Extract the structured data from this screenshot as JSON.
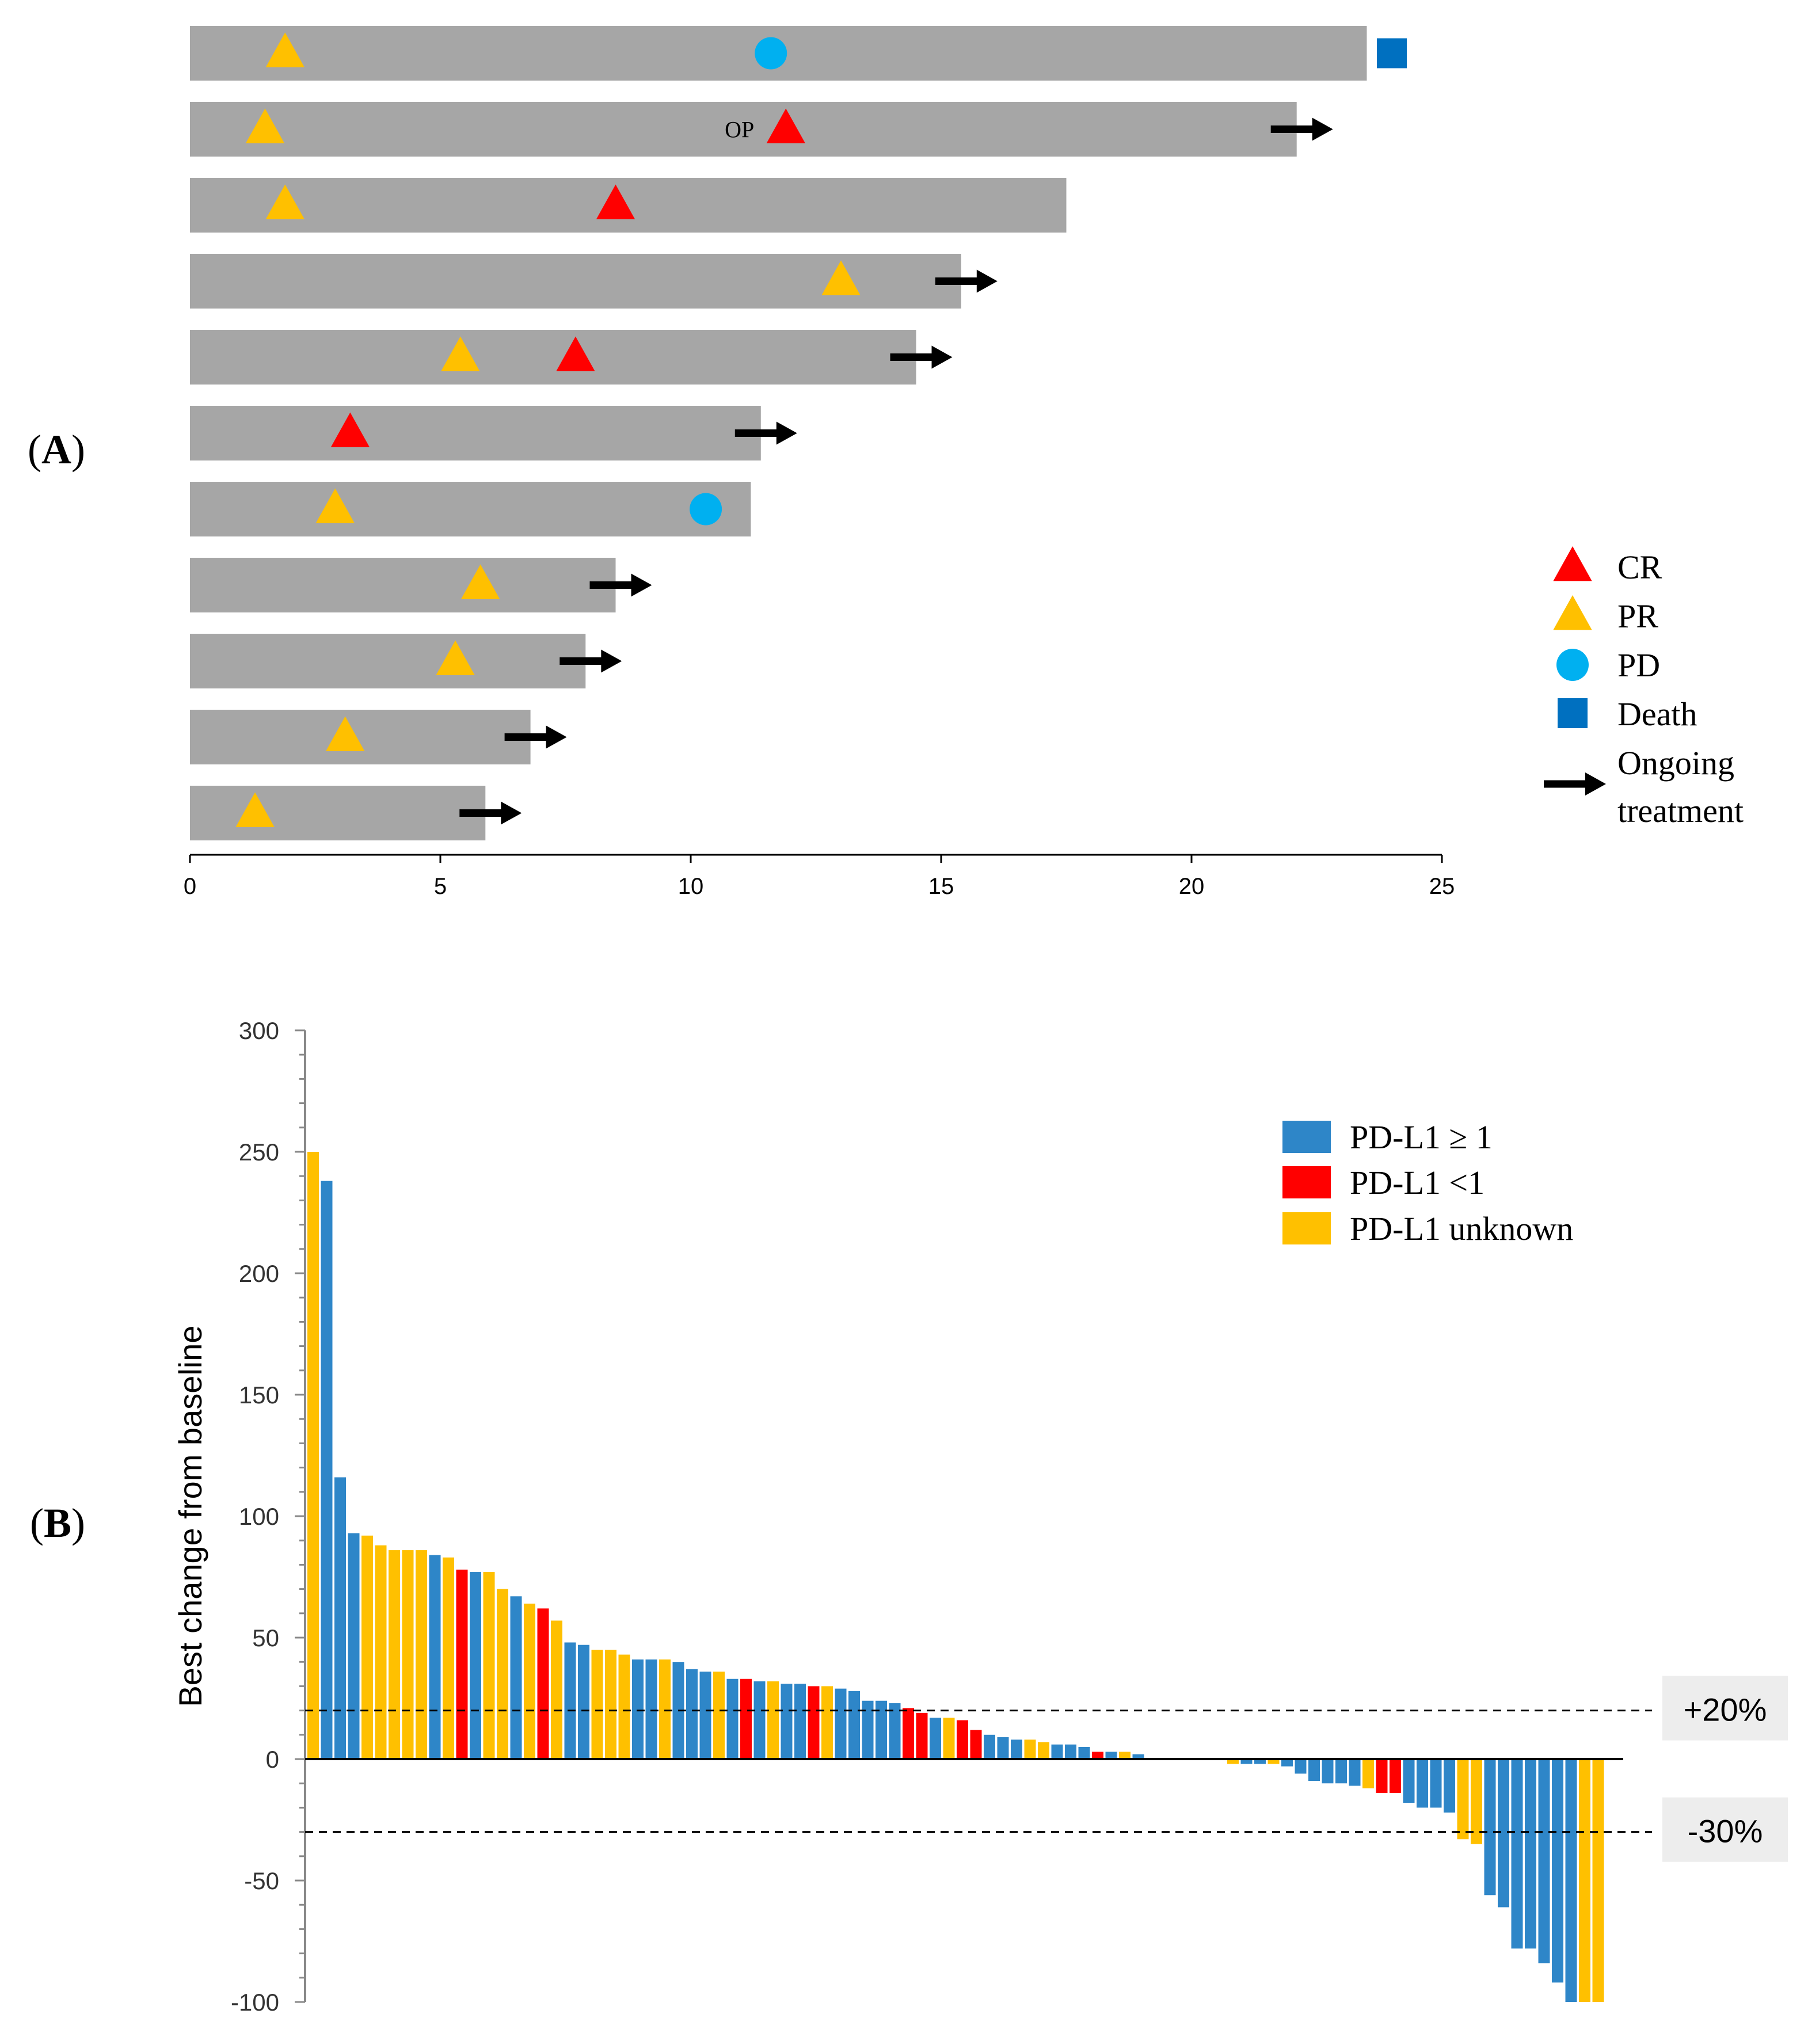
{
  "panel_a_label": "A",
  "panel_b_label": "B",
  "chart_data": [
    {
      "type": "swimmer",
      "panel": "A",
      "xlim": [
        0,
        25
      ],
      "xticks": [
        "0",
        "5",
        "10",
        "15",
        "20",
        "25"
      ],
      "tick_values": [
        0,
        5,
        10,
        15,
        20,
        25
      ],
      "annotation_op": "OP",
      "patients": [
        {
          "duration": 23.5,
          "ongoing": false,
          "events": [
            {
              "type": "PR",
              "time": 1.9
            },
            {
              "type": "PD",
              "time": 11.6
            },
            {
              "type": "Death",
              "time": 24.0
            }
          ]
        },
        {
          "duration": 22.1,
          "ongoing": true,
          "events": [
            {
              "type": "PR",
              "time": 1.5
            },
            {
              "type": "CR",
              "time": 11.9
            }
          ]
        },
        {
          "duration": 17.5,
          "ongoing": false,
          "events": [
            {
              "type": "PR",
              "time": 1.9
            },
            {
              "type": "CR",
              "time": 8.5
            }
          ]
        },
        {
          "duration": 15.4,
          "ongoing": true,
          "events": [
            {
              "type": "PR",
              "time": 13.0
            }
          ]
        },
        {
          "duration": 14.5,
          "ongoing": true,
          "events": [
            {
              "type": "PR",
              "time": 5.4
            },
            {
              "type": "CR",
              "time": 7.7
            }
          ]
        },
        {
          "duration": 11.4,
          "ongoing": true,
          "events": [
            {
              "type": "CR",
              "time": 3.2
            }
          ]
        },
        {
          "duration": 11.2,
          "ongoing": false,
          "events": [
            {
              "type": "PR",
              "time": 2.9
            },
            {
              "type": "PD",
              "time": 10.3
            }
          ]
        },
        {
          "duration": 8.5,
          "ongoing": true,
          "events": [
            {
              "type": "PR",
              "time": 5.8
            }
          ]
        },
        {
          "duration": 7.9,
          "ongoing": true,
          "events": [
            {
              "type": "PR",
              "time": 5.3
            }
          ]
        },
        {
          "duration": 6.8,
          "ongoing": true,
          "events": [
            {
              "type": "PR",
              "time": 3.1
            }
          ]
        },
        {
          "duration": 5.9,
          "ongoing": true,
          "events": [
            {
              "type": "PR",
              "time": 1.3
            }
          ]
        }
      ],
      "legend": {
        "cr": "CR",
        "pr": "PR",
        "pd": "PD",
        "death": "Death",
        "ongoing_line1": "Ongoing",
        "ongoing_line2": "treatment"
      },
      "colors": {
        "bar": "#a6a6a6",
        "CR": "#ff0000",
        "PR": "#ffc000",
        "PD": "#00b0f0",
        "Death": "#0070c0",
        "arrow": "#000000"
      }
    },
    {
      "type": "bar",
      "panel": "B",
      "ylabel": "Best change from baseline",
      "ylim": [
        -100,
        300
      ],
      "yticks": [
        "-100",
        "-50",
        "0",
        "50",
        "100",
        "150",
        "200",
        "250",
        "300"
      ],
      "ytick_values": [
        -100,
        -50,
        0,
        50,
        100,
        150,
        200,
        250,
        300
      ],
      "threshold_high": 20,
      "threshold_low": -30,
      "threshold_high_label": "+20%",
      "threshold_low_label": "-30%",
      "legend": {
        "pos": "PD-L1 ≥ 1",
        "neg": "PD-L1 <1",
        "unk": "PD-L1 unknown"
      },
      "colors": {
        "pos": "#2e86c8",
        "neg": "#ff0000",
        "unk": "#ffc000"
      },
      "values": [
        250,
        238,
        116,
        93,
        92,
        88,
        86,
        86,
        86,
        84,
        83,
        78,
        77,
        77,
        70,
        67,
        64,
        62,
        57,
        48,
        47,
        45,
        45,
        43,
        41,
        41,
        41,
        40,
        37,
        36,
        36,
        33,
        33,
        32,
        32,
        31,
        31,
        30,
        30,
        29,
        28,
        24,
        24,
        23,
        21,
        19,
        17,
        17,
        16,
        12,
        10,
        9,
        8,
        8,
        7,
        6,
        6,
        5,
        3,
        3,
        3,
        2,
        0,
        0,
        0,
        0,
        0,
        0,
        -2,
        -2,
        -2,
        -2,
        -3,
        -6,
        -9,
        -10,
        -10,
        -11,
        -12,
        -14,
        -14,
        -18,
        -20,
        -20,
        -22,
        -33,
        -35,
        -56,
        -61,
        -78,
        -78,
        -84,
        -92,
        -100,
        -100,
        -100
      ],
      "groups": [
        "unk",
        "pos",
        "pos",
        "pos",
        "unk",
        "unk",
        "unk",
        "unk",
        "unk",
        "pos",
        "unk",
        "neg",
        "pos",
        "unk",
        "unk",
        "pos",
        "unk",
        "neg",
        "unk",
        "pos",
        "pos",
        "unk",
        "unk",
        "unk",
        "pos",
        "pos",
        "unk",
        "pos",
        "pos",
        "pos",
        "unk",
        "pos",
        "neg",
        "pos",
        "unk",
        "pos",
        "pos",
        "neg",
        "unk",
        "pos",
        "pos",
        "pos",
        "pos",
        "pos",
        "neg",
        "neg",
        "pos",
        "unk",
        "neg",
        "neg",
        "pos",
        "pos",
        "pos",
        "unk",
        "unk",
        "pos",
        "pos",
        "pos",
        "neg",
        "pos",
        "unk",
        "pos",
        "pos",
        "pos",
        "pos",
        "pos",
        "pos",
        "pos",
        "unk",
        "pos",
        "pos",
        "unk",
        "pos",
        "pos",
        "pos",
        "pos",
        "pos",
        "pos",
        "unk",
        "neg",
        "neg",
        "pos",
        "pos",
        "pos",
        "pos",
        "unk",
        "unk",
        "pos",
        "pos",
        "pos",
        "pos",
        "pos",
        "pos",
        "pos",
        "unk",
        "unk"
      ]
    }
  ]
}
